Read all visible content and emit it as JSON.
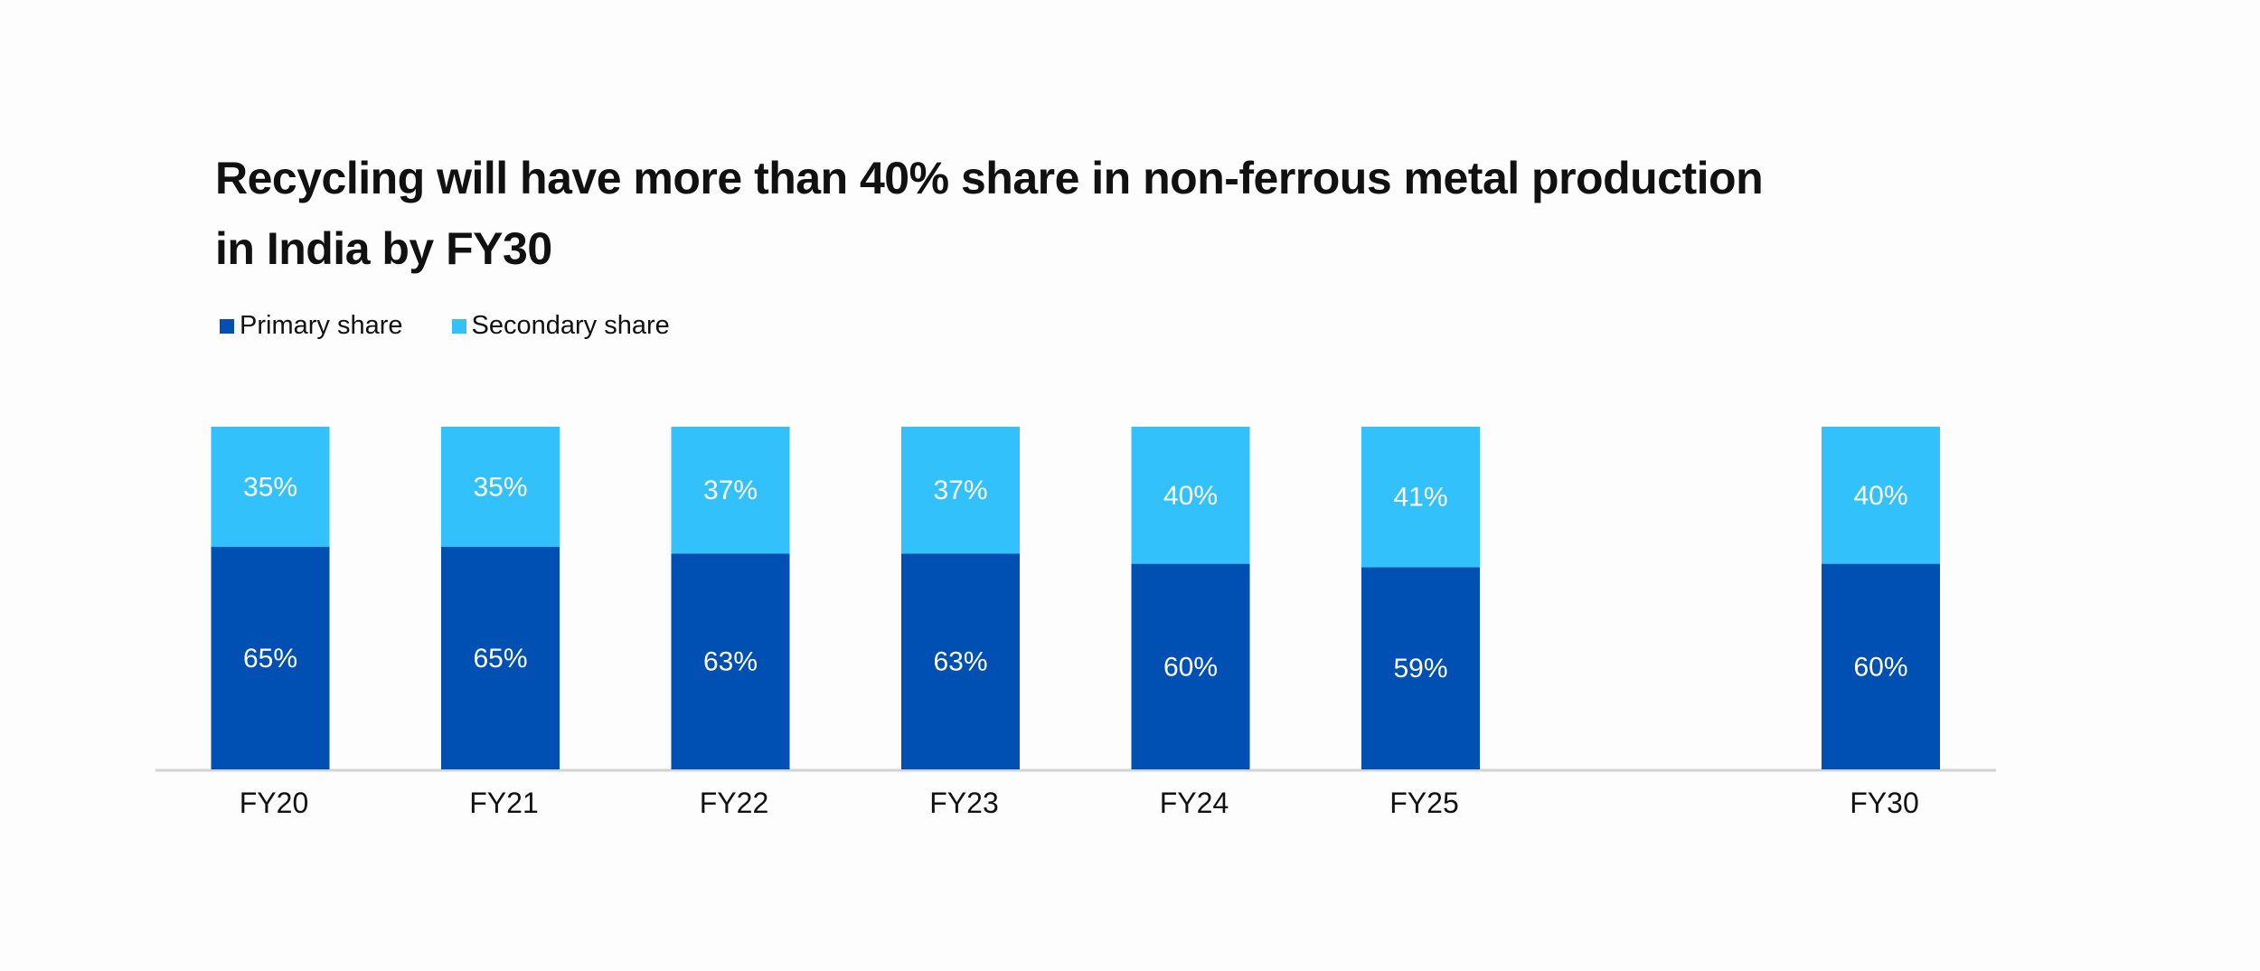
{
  "chart_data": {
    "type": "bar",
    "stacked": true,
    "title": "Recycling will have more than 40% share in non-ferrous metal production in India by FY30",
    "title_lines": [
      "Recycling will have more than 40% share in non-ferrous metal production",
      "in India by FY30"
    ],
    "xlabel": "",
    "ylabel": "",
    "ylim": [
      0,
      100
    ],
    "grid": false,
    "legend_position": "top-left",
    "categories": [
      "FY20",
      "FY21",
      "FY22",
      "FY23",
      "FY24",
      "FY25",
      "FY30"
    ],
    "series": [
      {
        "name": "Primary share",
        "color": "#0050b3",
        "values": [
          65,
          65,
          63,
          63,
          60,
          59,
          60
        ],
        "labels": [
          "65%",
          "65%",
          "63%",
          "63%",
          "60%",
          "59%",
          "60%"
        ]
      },
      {
        "name": "Secondary share",
        "color": "#33c1fc",
        "values": [
          35,
          35,
          37,
          37,
          40,
          41,
          40
        ],
        "labels": [
          "35%",
          "35%",
          "37%",
          "37%",
          "40%",
          "41%",
          "40%"
        ]
      }
    ]
  }
}
